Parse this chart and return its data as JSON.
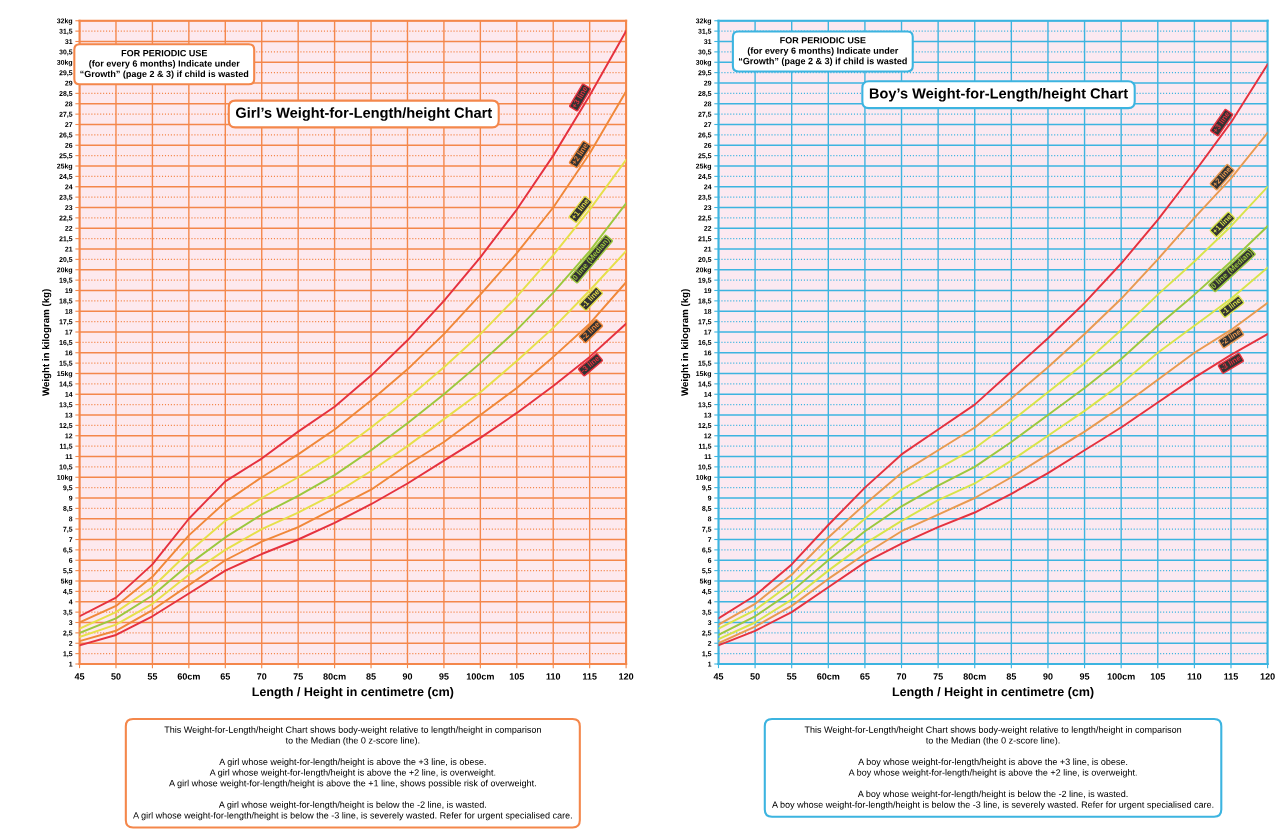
{
  "chart_data": [
    {
      "type": "line",
      "title": "Girl’s Weight-for-Length/height Chart",
      "xlabel": "Length / Height in centimetre (cm)",
      "ylabel": "Weight in kilogram (kg)",
      "x": [
        45,
        50,
        55,
        60,
        65,
        70,
        75,
        80,
        85,
        90,
        95,
        100,
        105,
        110,
        115,
        120
      ],
      "xlim": [
        45,
        120
      ],
      "xticks": [
        45,
        50,
        55,
        {
          "value": 60,
          "label": "60cm"
        },
        65,
        70,
        75,
        {
          "value": 80,
          "label": "80cm"
        },
        85,
        90,
        95,
        {
          "value": 100,
          "label": "100cm"
        },
        105,
        110,
        115,
        120
      ],
      "ylim": [
        1,
        32
      ],
      "yticks": [
        1,
        {
          "value": 1.5,
          "label": "1,5"
        },
        2,
        {
          "value": 2.5,
          "label": "2,5"
        },
        3,
        {
          "value": 3.5,
          "label": "3,5"
        },
        4,
        {
          "value": 4.5,
          "label": "4,5"
        },
        {
          "value": 5,
          "label": "5kg"
        },
        {
          "value": 5.5,
          "label": "5,5"
        },
        6,
        {
          "value": 6.5,
          "label": "6,5"
        },
        7,
        {
          "value": 7.5,
          "label": "7,5"
        },
        8,
        {
          "value": 8.5,
          "label": "8,5"
        },
        9,
        {
          "value": 9.5,
          "label": "9,5"
        },
        {
          "value": 10,
          "label": "10kg"
        },
        {
          "value": 10.5,
          "label": "10,5"
        },
        11,
        {
          "value": 11.5,
          "label": "11,5"
        },
        12,
        {
          "value": 12.5,
          "label": "12,5"
        },
        13,
        {
          "value": 13.5,
          "label": "13,5"
        },
        14,
        {
          "value": 14.5,
          "label": "14,5"
        },
        {
          "value": 15,
          "label": "15kg"
        },
        {
          "value": 15.5,
          "label": "15,5"
        },
        16,
        {
          "value": 16.5,
          "label": "16,5"
        },
        17,
        {
          "value": 17.5,
          "label": "17,5"
        },
        18,
        {
          "value": 18.5,
          "label": "18,5"
        },
        19,
        {
          "value": 19.5,
          "label": "19,5"
        },
        {
          "value": 20,
          "label": "20kg"
        },
        {
          "value": 20.5,
          "label": "20,5"
        },
        21,
        {
          "value": 21.5,
          "label": "21,5"
        },
        22,
        {
          "value": 22.5,
          "label": "22,5"
        },
        23,
        {
          "value": 23.5,
          "label": "23,5"
        },
        24,
        {
          "value": 24.5,
          "label": "24,5"
        },
        {
          "value": 25,
          "label": "25kg"
        },
        {
          "value": 25.5,
          "label": "25,5"
        },
        26,
        {
          "value": 26.5,
          "label": "26,5"
        },
        27,
        {
          "value": 27.5,
          "label": "27,5"
        },
        28,
        {
          "value": 28.5,
          "label": "28,5"
        },
        29,
        {
          "value": 29.5,
          "label": "29,5"
        },
        {
          "value": 30,
          "label": "30kg"
        },
        {
          "value": 30.5,
          "label": "30,5"
        },
        31,
        {
          "value": 31.5,
          "label": "31,5"
        },
        {
          "value": 32,
          "label": "32kg"
        }
      ],
      "grid": true,
      "series": [
        {
          "name": "+3 line",
          "color": "#e5323f",
          "values": [
            3.3,
            4.2,
            5.8,
            8.0,
            9.8,
            10.9,
            12.2,
            13.4,
            14.9,
            16.6,
            18.5,
            20.6,
            22.9,
            25.5,
            28.4,
            31.5
          ]
        },
        {
          "name": "+2 line",
          "color": "#f0883a",
          "values": [
            3.0,
            3.8,
            5.2,
            7.2,
            8.8,
            10.0,
            11.1,
            12.3,
            13.7,
            15.2,
            16.9,
            18.8,
            20.8,
            23.0,
            25.6,
            28.6
          ]
        },
        {
          "name": "+1 line",
          "color": "#e6e04a",
          "values": [
            2.7,
            3.5,
            4.7,
            6.4,
            7.9,
            9.0,
            10.0,
            11.1,
            12.4,
            13.8,
            15.3,
            16.9,
            18.7,
            20.7,
            22.9,
            25.3
          ]
        },
        {
          "name": "0 line (Median)",
          "color": "#9cc83e",
          "values": [
            2.5,
            3.2,
            4.3,
            5.8,
            7.1,
            8.2,
            9.1,
            10.1,
            11.3,
            12.6,
            14.0,
            15.5,
            17.1,
            18.9,
            20.9,
            23.2
          ]
        },
        {
          "name": "-1 line",
          "color": "#e6e04a",
          "values": [
            2.3,
            2.9,
            3.9,
            5.3,
            6.5,
            7.5,
            8.3,
            9.2,
            10.3,
            11.5,
            12.8,
            14.1,
            15.6,
            17.2,
            19.0,
            20.9
          ]
        },
        {
          "name": "-2 line",
          "color": "#f0883a",
          "values": [
            2.1,
            2.6,
            3.6,
            4.8,
            6.0,
            6.9,
            7.6,
            8.5,
            9.4,
            10.6,
            11.7,
            13.0,
            14.3,
            15.8,
            17.4,
            19.4
          ]
        },
        {
          "name": "-3 line",
          "color": "#e5323f",
          "values": [
            1.9,
            2.4,
            3.3,
            4.4,
            5.5,
            6.3,
            7.0,
            7.8,
            8.7,
            9.7,
            10.8,
            11.9,
            13.1,
            14.4,
            15.8,
            17.4
          ]
        }
      ],
      "annotations": [
        "FOR PERIODIC USE\n(for every 6 months) Indicate under\n“Growth” (page 2 & 3) if child is wasted",
        "This Weight-for-Length/height Chart shows body-weight relative to length/height in comparison\nto the Median (the 0 z-score line).\n\nA girl whose weight-for-length/height is above the +3 line, is obese.\nA girl whose weight-for-length/height is above the +2 line, is overweight.\nA girl whose weight-for-length/height is above the +1 line, shows possible risk of overweight.\n\nA girl whose weight-for-length/height is below the -2 line, is wasted.\nA girl whose weight-for-length/height is below the -3 line, is severely wasted. Refer for urgent specialised care."
      ]
    },
    {
      "type": "line",
      "title": "Boy’s Weight-for-Length/height Chart",
      "xlabel": "Length / Height in centimetre (cm)",
      "ylabel": "Weight in kilogram (kg)",
      "x": [
        45,
        50,
        55,
        60,
        65,
        70,
        75,
        80,
        85,
        90,
        95,
        100,
        105,
        110,
        115,
        120
      ],
      "xlim": [
        45,
        120
      ],
      "xticks": [
        45,
        50,
        55,
        {
          "value": 60,
          "label": "60cm"
        },
        65,
        70,
        75,
        {
          "value": 80,
          "label": "80cm"
        },
        85,
        90,
        95,
        {
          "value": 100,
          "label": "100cm"
        },
        105,
        110,
        115,
        120
      ],
      "ylim": [
        1,
        32
      ],
      "yticks": [
        1,
        {
          "value": 1.5,
          "label": "1,5"
        },
        2,
        {
          "value": 2.5,
          "label": "2,5"
        },
        3,
        {
          "value": 3.5,
          "label": "3,5"
        },
        4,
        {
          "value": 4.5,
          "label": "4,5"
        },
        {
          "value": 5,
          "label": "5kg"
        },
        {
          "value": 5.5,
          "label": "5,5"
        },
        6,
        {
          "value": 6.5,
          "label": "6,5"
        },
        7,
        {
          "value": 7.5,
          "label": "7,5"
        },
        8,
        {
          "value": 8.5,
          "label": "8,5"
        },
        9,
        {
          "value": 9.5,
          "label": "9,5"
        },
        {
          "value": 10,
          "label": "10kg"
        },
        {
          "value": 10.5,
          "label": "10,5"
        },
        11,
        {
          "value": 11.5,
          "label": "11,5"
        },
        12,
        {
          "value": 12.5,
          "label": "12,5"
        },
        13,
        {
          "value": 13.5,
          "label": "13,5"
        },
        14,
        {
          "value": 14.5,
          "label": "14,5"
        },
        {
          "value": 15,
          "label": "15kg"
        },
        {
          "value": 15.5,
          "label": "15,5"
        },
        16,
        {
          "value": 16.5,
          "label": "16,5"
        },
        17,
        {
          "value": 17.5,
          "label": "17,5"
        },
        18,
        {
          "value": 18.5,
          "label": "18,5"
        },
        19,
        {
          "value": 19.5,
          "label": "19,5"
        },
        {
          "value": 20,
          "label": "20kg"
        },
        {
          "value": 20.5,
          "label": "20,5"
        },
        21,
        {
          "value": 21.5,
          "label": "21,5"
        },
        22,
        {
          "value": 22.5,
          "label": "22,5"
        },
        23,
        {
          "value": 23.5,
          "label": "23,5"
        },
        24,
        {
          "value": 24.5,
          "label": "24,5"
        },
        {
          "value": 25,
          "label": "25kg"
        },
        {
          "value": 25.5,
          "label": "25,5"
        },
        26,
        {
          "value": 26.5,
          "label": "26,5"
        },
        27,
        {
          "value": 27.5,
          "label": "27,5"
        },
        28,
        {
          "value": 28.5,
          "label": "28,5"
        },
        29,
        {
          "value": 29.5,
          "label": "29,5"
        },
        {
          "value": 30,
          "label": "30kg"
        },
        {
          "value": 30.5,
          "label": "30,5"
        },
        31,
        {
          "value": 31.5,
          "label": "31,5"
        },
        {
          "value": 32,
          "label": "32kg"
        }
      ],
      "grid": true,
      "series": [
        {
          "name": "+3 line",
          "color": "#e5323f",
          "values": [
            3.2,
            4.3,
            5.8,
            7.7,
            9.5,
            11.1,
            12.3,
            13.5,
            15.1,
            16.7,
            18.4,
            20.3,
            22.4,
            24.7,
            27.1,
            29.9
          ]
        },
        {
          "name": "+2 line",
          "color": "#e89a50",
          "values": [
            2.9,
            3.9,
            5.3,
            7.1,
            8.7,
            10.2,
            11.3,
            12.4,
            13.8,
            15.3,
            16.9,
            18.6,
            20.5,
            22.5,
            24.4,
            26.6
          ]
        },
        {
          "name": "+1 line",
          "color": "#d8e44a",
          "values": [
            2.7,
            3.6,
            4.9,
            6.5,
            8.0,
            9.4,
            10.4,
            11.4,
            12.7,
            14.1,
            15.5,
            17.1,
            18.8,
            20.4,
            22.1,
            24.0
          ]
        },
        {
          "name": "0 line (Median)",
          "color": "#9cc83e",
          "values": [
            2.4,
            3.3,
            4.5,
            6.0,
            7.4,
            8.6,
            9.6,
            10.5,
            11.7,
            13.0,
            14.3,
            15.7,
            17.3,
            18.8,
            20.4,
            22.1
          ]
        },
        {
          "name": "-1 line",
          "color": "#d8e44a",
          "values": [
            2.2,
            3.0,
            4.1,
            5.5,
            6.8,
            7.9,
            8.9,
            9.7,
            10.8,
            12.0,
            13.2,
            14.5,
            16.0,
            17.3,
            18.6,
            20.1
          ]
        },
        {
          "name": "-2 line",
          "color": "#e89a50",
          "values": [
            2.0,
            2.8,
            3.8,
            5.1,
            6.3,
            7.4,
            8.2,
            9.0,
            10.0,
            11.1,
            12.2,
            13.4,
            14.7,
            16.0,
            17.1,
            18.4
          ]
        },
        {
          "name": "-3 line",
          "color": "#e5323f",
          "values": [
            1.9,
            2.6,
            3.5,
            4.7,
            5.9,
            6.8,
            7.6,
            8.3,
            9.2,
            10.2,
            11.3,
            12.4,
            13.6,
            14.8,
            15.9,
            16.9
          ]
        }
      ],
      "annotations": [
        "FOR PERIODIC USE\n(for every 6 months) Indicate under\n“Growth” (page 2 & 3) if child is wasted",
        "This Weight-for-Length/height Chart shows body-weight relative to length/height in comparison\nto the Median (the 0 z-score line).\n\nA boy whose weight-for-length/height is above the +3 line, is obese.\nA boy whose weight-for-length/height is above the +2 line, is overweight.\n\nA boy whose weight-for-length/height is below the -2 line, is wasted.\nA boy whose weight-for-length/height is below the -3 line, is severely wasted. Refer for urgent specialised care."
      ]
    }
  ]
}
